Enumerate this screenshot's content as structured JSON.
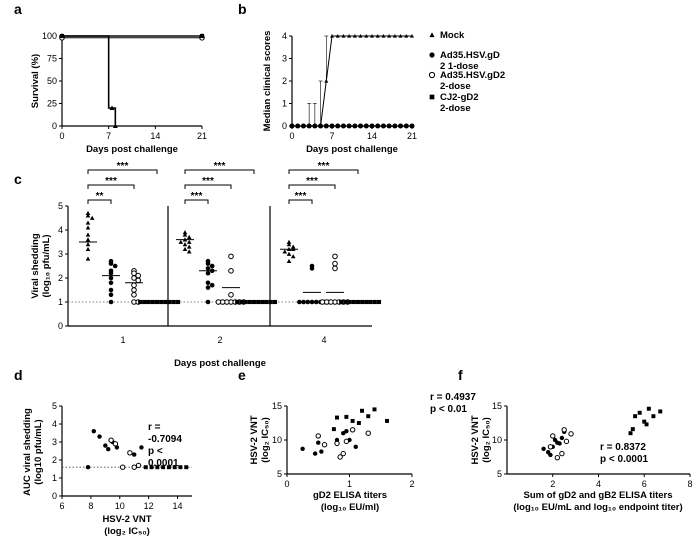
{
  "panel_labels": [
    "a",
    "b",
    "c",
    "d",
    "e",
    "f"
  ],
  "chart_data": [
    {
      "panel": "a",
      "type": "line",
      "title": "",
      "xlabel": "Days post challenge",
      "ylabel": "Survival (%)",
      "xlim": [
        0,
        21
      ],
      "ylim": [
        0,
        100
      ],
      "xticks": [
        0,
        7,
        14,
        21
      ],
      "yticks": [
        0,
        25,
        50,
        75,
        100
      ],
      "xtick_labels": [
        "0",
        "7",
        "14",
        "21"
      ],
      "ytick_labels": [
        "0",
        "25",
        "50",
        "75",
        "100"
      ],
      "series": [
        {
          "name": "Mock",
          "marker": "triangle",
          "x": [
            0,
            7,
            7,
            7.5,
            7.5,
            8,
            8
          ],
          "y": [
            100,
            100,
            20,
            20,
            20,
            20,
            0
          ]
        },
        {
          "name": "Ad35.HSV.gD2 1-dose",
          "marker": "circle",
          "x": [
            0,
            21
          ],
          "y": [
            100,
            100
          ]
        },
        {
          "name": "Ad35.HSV.gD2 2-dose",
          "marker": "open-circle",
          "x": [
            0,
            21
          ],
          "y": [
            98,
            98
          ]
        },
        {
          "name": "CJ2-gD2 2-dose",
          "marker": "square",
          "x": [
            0,
            21
          ],
          "y": [
            100,
            100
          ]
        }
      ]
    },
    {
      "panel": "b",
      "type": "line",
      "title": "",
      "xlabel": "Days post challenge",
      "ylabel": "Median clinical scores",
      "xlim": [
        0,
        21
      ],
      "ylim": [
        0,
        4
      ],
      "xticks": [
        0,
        7,
        14,
        21
      ],
      "yticks": [
        0,
        1,
        2,
        3,
        4
      ],
      "xtick_labels": [
        "0",
        "7",
        "14",
        "21"
      ],
      "ytick_labels": [
        "0",
        "1",
        "2",
        "3",
        "4"
      ],
      "legend": [
        "Mock",
        "Ad35.HSV.gD 2 1-dose",
        "Ad35.HSV.gD2 2-dose",
        "CJ2-gD2 2-dose"
      ],
      "series": [
        {
          "name": "Mock",
          "marker": "triangle",
          "x": [
            0,
            1,
            2,
            3,
            4,
            5,
            6,
            7,
            8,
            9,
            10,
            11,
            12,
            13,
            14,
            15,
            16,
            17,
            18,
            19,
            20,
            21
          ],
          "y": [
            0,
            0,
            0,
            0,
            0,
            0,
            2,
            4,
            4,
            4,
            4,
            4,
            4,
            4,
            4,
            4,
            4,
            4,
            4,
            4,
            4,
            4
          ],
          "err_up": [
            0,
            0,
            0,
            1,
            1,
            2,
            4,
            0,
            0,
            0,
            0,
            0,
            0,
            0,
            0,
            0,
            0,
            0,
            0,
            0,
            0,
            0
          ]
        },
        {
          "name": "Ad35.HSV.gD2 1-dose",
          "marker": "circle",
          "x": [
            0,
            1,
            2,
            3,
            4,
            5,
            6,
            7,
            8,
            9,
            10,
            11,
            12,
            13,
            14,
            15,
            16,
            17,
            18,
            19,
            20,
            21
          ],
          "y": [
            0,
            0,
            0,
            0,
            0,
            0,
            0,
            0,
            0,
            0,
            0,
            0,
            0,
            0,
            0,
            0,
            0,
            0,
            0,
            0,
            0,
            0
          ]
        },
        {
          "name": "Ad35.HSV.gD2 2-dose",
          "marker": "open-circle",
          "x": [
            0,
            1,
            2,
            3,
            4,
            5,
            6,
            7,
            8,
            9,
            10,
            11,
            12,
            13,
            14,
            15,
            16,
            17,
            18,
            19,
            20,
            21
          ],
          "y": [
            0,
            0,
            0,
            0,
            0,
            0,
            0,
            0,
            0,
            0,
            0,
            0,
            0,
            0,
            0,
            0,
            0,
            0,
            0,
            0,
            0,
            0
          ]
        },
        {
          "name": "CJ2-gD2 2-dose",
          "marker": "square",
          "x": [
            0,
            1,
            2,
            3,
            4,
            5,
            6,
            7,
            8,
            9,
            10,
            11,
            12,
            13,
            14,
            15,
            16,
            17,
            18,
            19,
            20,
            21
          ],
          "y": [
            0,
            0,
            0,
            0,
            0,
            0,
            0,
            0,
            0,
            0,
            0,
            0,
            0,
            0,
            0,
            0,
            0,
            0,
            0,
            0,
            0,
            0
          ]
        }
      ]
    },
    {
      "panel": "c",
      "type": "scatter",
      "title": "",
      "xlabel": "Days post challenge",
      "ylabel": "Viral shedding (log10 pfu/mL)",
      "ylim": [
        0,
        5
      ],
      "yticks": [
        0,
        1,
        2,
        3,
        4,
        5
      ],
      "ytick_labels": [
        "0",
        "1",
        "2",
        "3",
        "4",
        "5"
      ],
      "limit_of_detection": 1,
      "groups": [
        {
          "day": "1",
          "sig": [
            "**",
            "***",
            "***"
          ],
          "mock": [
            4.7,
            4.6,
            4.5,
            4.3,
            4.1,
            3.8,
            3.6,
            3.4,
            3.2,
            2.8
          ],
          "gd2_1": [
            2.7,
            2.6,
            2.5,
            2.3,
            2.2,
            2.0,
            1.8,
            1.5,
            1.3,
            1.0
          ],
          "gd2_2": [
            2.3,
            2.2,
            2.1,
            2.0,
            1.9,
            1.7,
            1.5,
            1.3,
            1.0,
            1.0
          ],
          "cj2": [
            1,
            1,
            1,
            1,
            1,
            1,
            1,
            1,
            1,
            1
          ],
          "medians": [
            3.5,
            2.1,
            1.8,
            1.0
          ]
        },
        {
          "day": "2",
          "sig": [
            "***",
            "***",
            "***"
          ],
          "mock": [
            3.9,
            3.8,
            3.7,
            3.6,
            3.5,
            3.5,
            3.4,
            3.3,
            3.2,
            3.1
          ],
          "gd2_1": [
            2.7,
            2.6,
            2.5,
            2.4,
            2.3,
            2.2,
            1.8,
            1.7,
            1.6,
            1.0
          ],
          "gd2_2": [
            2.9,
            2.3,
            1.3,
            1.0,
            1.0,
            1.0,
            1.0,
            1.0,
            1.0,
            1.0
          ],
          "cj2": [
            1,
            1,
            1,
            1,
            1,
            1,
            1,
            1,
            1,
            1
          ],
          "medians": [
            3.6,
            2.3,
            1.6,
            1.0
          ]
        },
        {
          "day": "4",
          "sig": [
            "***",
            "***",
            "***"
          ],
          "mock": [
            3.5,
            3.4,
            3.3,
            3.2,
            3.2,
            3.1,
            3.0,
            2.9,
            2.7
          ],
          "gd2_1": [
            2.5,
            2.4,
            1.0,
            1.0,
            1.0,
            1.0,
            1.0,
            1.0,
            1.0,
            1.0
          ],
          "gd2_2": [
            2.9,
            2.6,
            2.4,
            1.0,
            1.0,
            1.0,
            1.0,
            1.0,
            1.0,
            1.0
          ],
          "cj2": [
            1,
            1,
            1,
            1,
            1,
            1,
            1,
            1,
            1,
            1
          ],
          "medians": [
            3.2,
            1.4,
            1.4,
            1.0
          ]
        }
      ]
    },
    {
      "panel": "d",
      "type": "scatter",
      "xlabel": "HSV-2 VNT",
      "xlabel2": "(log2 IC50)",
      "ylabel": "AUC viral shedding (log10 pfu/mL)",
      "xlim": [
        6,
        15
      ],
      "ylim": [
        0,
        5
      ],
      "xticks": [
        6,
        8,
        10,
        12,
        14
      ],
      "yticks": [
        0,
        1,
        2,
        3,
        4,
        5
      ],
      "xtick_labels": [
        "6",
        "8",
        "10",
        "12",
        "14"
      ],
      "ytick_labels": [
        "0",
        "1",
        "2",
        "3",
        "4",
        "5"
      ],
      "baseline": 1.6,
      "annotation": [
        "r =",
        "-0.7094",
        "p <",
        "0.0001"
      ],
      "points": [
        {
          "g": "gd2_1",
          "x": 8.2,
          "y": 3.6
        },
        {
          "g": "gd2_1",
          "x": 8.6,
          "y": 3.3
        },
        {
          "g": "gd2_1",
          "x": 9.0,
          "y": 2.8
        },
        {
          "g": "gd2_1",
          "x": 9.2,
          "y": 2.6
        },
        {
          "g": "gd2_1",
          "x": 9.5,
          "y": 3.0
        },
        {
          "g": "gd2_1",
          "x": 9.8,
          "y": 2.7
        },
        {
          "g": "gd2_1",
          "x": 11.0,
          "y": 2.3
        },
        {
          "g": "gd2_1",
          "x": 11.5,
          "y": 2.7
        },
        {
          "g": "gd2_1",
          "x": 7.8,
          "y": 1.6
        },
        {
          "g": "gd2_2",
          "x": 9.4,
          "y": 3.1
        },
        {
          "g": "gd2_2",
          "x": 9.7,
          "y": 2.9
        },
        {
          "g": "gd2_2",
          "x": 10.2,
          "y": 1.6
        },
        {
          "g": "gd2_2",
          "x": 10.7,
          "y": 2.4
        },
        {
          "g": "gd2_2",
          "x": 11.0,
          "y": 1.6
        },
        {
          "g": "gd2_2",
          "x": 11.3,
          "y": 1.7
        },
        {
          "g": "cj2",
          "x": 11.8,
          "y": 1.6
        },
        {
          "g": "cj2",
          "x": 12.2,
          "y": 1.6
        },
        {
          "g": "cj2",
          "x": 12.6,
          "y": 1.6
        },
        {
          "g": "cj2",
          "x": 13.0,
          "y": 1.6
        },
        {
          "g": "cj2",
          "x": 13.4,
          "y": 1.6
        },
        {
          "g": "cj2",
          "x": 13.8,
          "y": 1.6
        },
        {
          "g": "cj2",
          "x": 14.2,
          "y": 1.6
        },
        {
          "g": "cj2",
          "x": 14.6,
          "y": 1.6
        }
      ]
    },
    {
      "panel": "e",
      "type": "scatter",
      "xlabel": "gD2 ELISA titers",
      "xlabel2": "(log10 EU/ml)",
      "ylabel": "HSV-2 VNT (log2 IC50)",
      "xlim": [
        0,
        2
      ],
      "ylim": [
        5,
        15
      ],
      "xticks": [
        0,
        1,
        2
      ],
      "yticks": [
        5,
        10,
        15
      ],
      "xtick_labels": [
        "0",
        "1",
        "2"
      ],
      "ytick_labels": [
        "5",
        "10",
        "15"
      ],
      "annotation": [
        "r = 0.4937",
        "p < 0.01"
      ],
      "points": [
        {
          "g": "gd2_1",
          "x": 0.25,
          "y": 8.7
        },
        {
          "g": "gd2_1",
          "x": 0.45,
          "y": 8.0
        },
        {
          "g": "gd2_1",
          "x": 0.55,
          "y": 8.3
        },
        {
          "g": "gd2_1",
          "x": 0.5,
          "y": 9.6
        },
        {
          "g": "gd2_1",
          "x": 0.8,
          "y": 10.0
        },
        {
          "g": "gd2_1",
          "x": 0.9,
          "y": 11.0
        },
        {
          "g": "gd2_1",
          "x": 0.95,
          "y": 11.3
        },
        {
          "g": "gd2_1",
          "x": 1.0,
          "y": 10.0
        },
        {
          "g": "gd2_1",
          "x": 1.1,
          "y": 9.0
        },
        {
          "g": "gd2_2",
          "x": 0.6,
          "y": 9.3
        },
        {
          "g": "gd2_2",
          "x": 0.8,
          "y": 9.5
        },
        {
          "g": "gd2_2",
          "x": 0.85,
          "y": 7.5
        },
        {
          "g": "gd2_2",
          "x": 0.9,
          "y": 8.0
        },
        {
          "g": "gd2_2",
          "x": 0.95,
          "y": 9.8
        },
        {
          "g": "gd2_2",
          "x": 1.05,
          "y": 11.5
        },
        {
          "g": "gd2_2",
          "x": 1.3,
          "y": 11.0
        },
        {
          "g": "gd2_2",
          "x": 0.5,
          "y": 10.6
        },
        {
          "g": "cj2",
          "x": 0.75,
          "y": 11.6
        },
        {
          "g": "cj2",
          "x": 0.8,
          "y": 13.3
        },
        {
          "g": "cj2",
          "x": 0.95,
          "y": 13.4
        },
        {
          "g": "cj2",
          "x": 1.05,
          "y": 12.8
        },
        {
          "g": "cj2",
          "x": 1.15,
          "y": 12.5
        },
        {
          "g": "cj2",
          "x": 1.2,
          "y": 14.3
        },
        {
          "g": "cj2",
          "x": 1.3,
          "y": 13.5
        },
        {
          "g": "cj2",
          "x": 1.4,
          "y": 14.5
        },
        {
          "g": "cj2",
          "x": 1.6,
          "y": 12.8
        }
      ]
    },
    {
      "panel": "f",
      "type": "scatter",
      "xlabel": "Sum of gD2 and gB2 ELISA titers",
      "xlabel2": "(log10 EU/mL and log10 endpoint titer)",
      "ylabel": "HSV-2 VNT (log2 IC50)",
      "xlim": [
        0,
        8
      ],
      "ylim": [
        5,
        15
      ],
      "xticks": [
        2,
        4,
        6,
        8
      ],
      "yticks": [
        5,
        10,
        15
      ],
      "xtick_labels": [
        "2",
        "4",
        "6",
        "8"
      ],
      "ytick_labels": [
        "5",
        "10",
        "15"
      ],
      "annotation": [
        "r = 0.8372",
        "p < 0.0001"
      ],
      "points": [
        {
          "g": "gd2_1",
          "x": 1.6,
          "y": 8.7
        },
        {
          "g": "gd2_1",
          "x": 1.8,
          "y": 8.2
        },
        {
          "g": "gd2_1",
          "x": 2.0,
          "y": 9.0
        },
        {
          "g": "gd2_1",
          "x": 2.1,
          "y": 10.0
        },
        {
          "g": "gd2_1",
          "x": 2.3,
          "y": 9.5
        },
        {
          "g": "gd2_1",
          "x": 2.4,
          "y": 10.3
        },
        {
          "g": "gd2_1",
          "x": 2.5,
          "y": 11.2
        },
        {
          "g": "gd2_1",
          "x": 1.9,
          "y": 7.8
        },
        {
          "g": "gd2_1",
          "x": 2.2,
          "y": 9.6
        },
        {
          "g": "gd2_2",
          "x": 1.9,
          "y": 9.0
        },
        {
          "g": "gd2_2",
          "x": 2.0,
          "y": 10.6
        },
        {
          "g": "gd2_2",
          "x": 2.2,
          "y": 7.4
        },
        {
          "g": "gd2_2",
          "x": 2.4,
          "y": 8.0
        },
        {
          "g": "gd2_2",
          "x": 2.6,
          "y": 9.8
        },
        {
          "g": "gd2_2",
          "x": 2.8,
          "y": 10.9
        },
        {
          "g": "gd2_2",
          "x": 2.5,
          "y": 11.5
        },
        {
          "g": "cj2",
          "x": 5.4,
          "y": 11.0
        },
        {
          "g": "cj2",
          "x": 5.5,
          "y": 11.6
        },
        {
          "g": "cj2",
          "x": 5.6,
          "y": 13.5
        },
        {
          "g": "cj2",
          "x": 5.8,
          "y": 14.0
        },
        {
          "g": "cj2",
          "x": 6.0,
          "y": 12.7
        },
        {
          "g": "cj2",
          "x": 6.1,
          "y": 12.3
        },
        {
          "g": "cj2",
          "x": 6.2,
          "y": 14.6
        },
        {
          "g": "cj2",
          "x": 6.4,
          "y": 13.5
        },
        {
          "g": "cj2",
          "x": 6.7,
          "y": 14.2
        }
      ]
    }
  ]
}
